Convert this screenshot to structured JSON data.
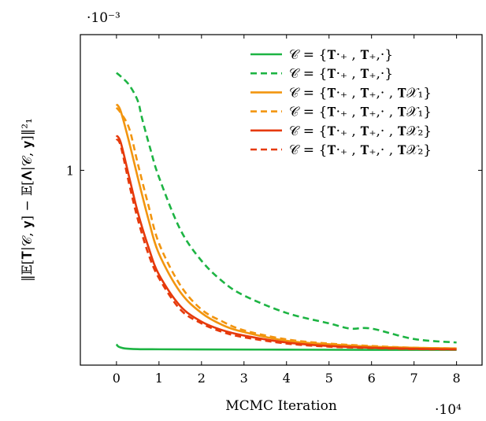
{
  "chart_data": {
    "type": "line",
    "xlabel": "MCMC Iteration",
    "ylabel": "‖𝔼[𝐓|𝒞, 𝐲] − 𝔼[𝚲|𝒞, 𝐲]‖²₁",
    "x_scale_label": "·10⁴",
    "y_scale_label": "·10⁻³",
    "xlim": [
      -0.85,
      8.6
    ],
    "ylim": [
      0.44,
      1.39
    ],
    "x_ticks": [
      0,
      1,
      2,
      3,
      4,
      5,
      6,
      7,
      8
    ],
    "x_tick_labels": [
      "0",
      "1",
      "2",
      "3",
      "4",
      "5",
      "6",
      "7",
      "8"
    ],
    "y_ticks": [
      1
    ],
    "y_tick_labels": [
      "1"
    ],
    "legend_position": "top-right",
    "series": [
      {
        "name": "𝒞 = {𝐓·₊ , 𝐓₊,·}",
        "color": "#1db443",
        "dash": "solid",
        "points": [
          [
            0,
            0.5
          ],
          [
            0.05,
            0.493
          ],
          [
            0.2,
            0.488
          ],
          [
            0.5,
            0.486
          ],
          [
            1,
            0.4855
          ],
          [
            2,
            0.485
          ],
          [
            4,
            0.4845
          ],
          [
            6,
            0.484
          ],
          [
            8,
            0.484
          ]
        ]
      },
      {
        "name": "𝒞 = {𝐓·₊ , 𝐓₊,·}",
        "color": "#1db443",
        "dash": "dashed",
        "points": [
          [
            0,
            1.28
          ],
          [
            0.1,
            1.27
          ],
          [
            0.3,
            1.245
          ],
          [
            0.5,
            1.2
          ],
          [
            0.6,
            1.15
          ],
          [
            0.8,
            1.06
          ],
          [
            1,
            0.98
          ],
          [
            1.5,
            0.83
          ],
          [
            2,
            0.74
          ],
          [
            2.5,
            0.68
          ],
          [
            3,
            0.64
          ],
          [
            4,
            0.59
          ],
          [
            5,
            0.56
          ],
          [
            5.5,
            0.545
          ],
          [
            6,
            0.545
          ],
          [
            7,
            0.515
          ],
          [
            8,
            0.505
          ]
        ]
      },
      {
        "name": "𝒞 = {𝐓·₊ , 𝐓₊,· , 𝐓𝒳₁}",
        "color": "#f2950f",
        "dash": "solid",
        "points": [
          [
            0,
            1.19
          ],
          [
            0.1,
            1.17
          ],
          [
            0.3,
            1.08
          ],
          [
            0.5,
            0.98
          ],
          [
            0.75,
            0.86
          ],
          [
            1,
            0.76
          ],
          [
            1.5,
            0.65
          ],
          [
            2,
            0.59
          ],
          [
            2.5,
            0.555
          ],
          [
            3,
            0.535
          ],
          [
            4,
            0.51
          ],
          [
            5,
            0.5
          ],
          [
            6,
            0.493
          ],
          [
            7,
            0.49
          ],
          [
            8,
            0.488
          ]
        ]
      },
      {
        "name": "𝒞 = {𝐓·₊ , 𝐓₊,· , 𝐓𝒳₁}",
        "color": "#f2950f",
        "dash": "dashed",
        "points": [
          [
            0,
            1.18
          ],
          [
            0.1,
            1.165
          ],
          [
            0.3,
            1.12
          ],
          [
            0.5,
            1.02
          ],
          [
            0.75,
            0.9
          ],
          [
            1,
            0.79
          ],
          [
            1.5,
            0.67
          ],
          [
            2,
            0.6
          ],
          [
            2.5,
            0.565
          ],
          [
            3,
            0.54
          ],
          [
            4,
            0.514
          ],
          [
            5,
            0.502
          ],
          [
            6,
            0.495
          ],
          [
            7,
            0.49
          ],
          [
            8,
            0.488
          ]
        ]
      },
      {
        "name": "𝒞 = {𝐓·₊ , 𝐓₊,· , 𝐓𝒳₂}",
        "color": "#e63a0c",
        "dash": "solid",
        "points": [
          [
            0,
            1.1
          ],
          [
            0.1,
            1.08
          ],
          [
            0.3,
            0.98
          ],
          [
            0.5,
            0.88
          ],
          [
            0.75,
            0.78
          ],
          [
            1,
            0.7
          ],
          [
            1.5,
            0.61
          ],
          [
            2,
            0.565
          ],
          [
            2.5,
            0.54
          ],
          [
            3,
            0.525
          ],
          [
            4,
            0.505
          ],
          [
            5,
            0.495
          ],
          [
            6,
            0.49
          ],
          [
            7,
            0.487
          ],
          [
            8,
            0.485
          ]
        ]
      },
      {
        "name": "𝒞 = {𝐓·₊ , 𝐓₊,· , 𝐓𝒳₂}",
        "color": "#e63a0c",
        "dash": "dashed",
        "points": [
          [
            0,
            1.09
          ],
          [
            0.1,
            1.07
          ],
          [
            0.3,
            0.96
          ],
          [
            0.5,
            0.86
          ],
          [
            0.75,
            0.76
          ],
          [
            1,
            0.69
          ],
          [
            1.5,
            0.6
          ],
          [
            2,
            0.56
          ],
          [
            2.5,
            0.535
          ],
          [
            3,
            0.52
          ],
          [
            4,
            0.502
          ],
          [
            5,
            0.493
          ],
          [
            6,
            0.489
          ],
          [
            7,
            0.486
          ],
          [
            8,
            0.485
          ]
        ]
      }
    ]
  }
}
